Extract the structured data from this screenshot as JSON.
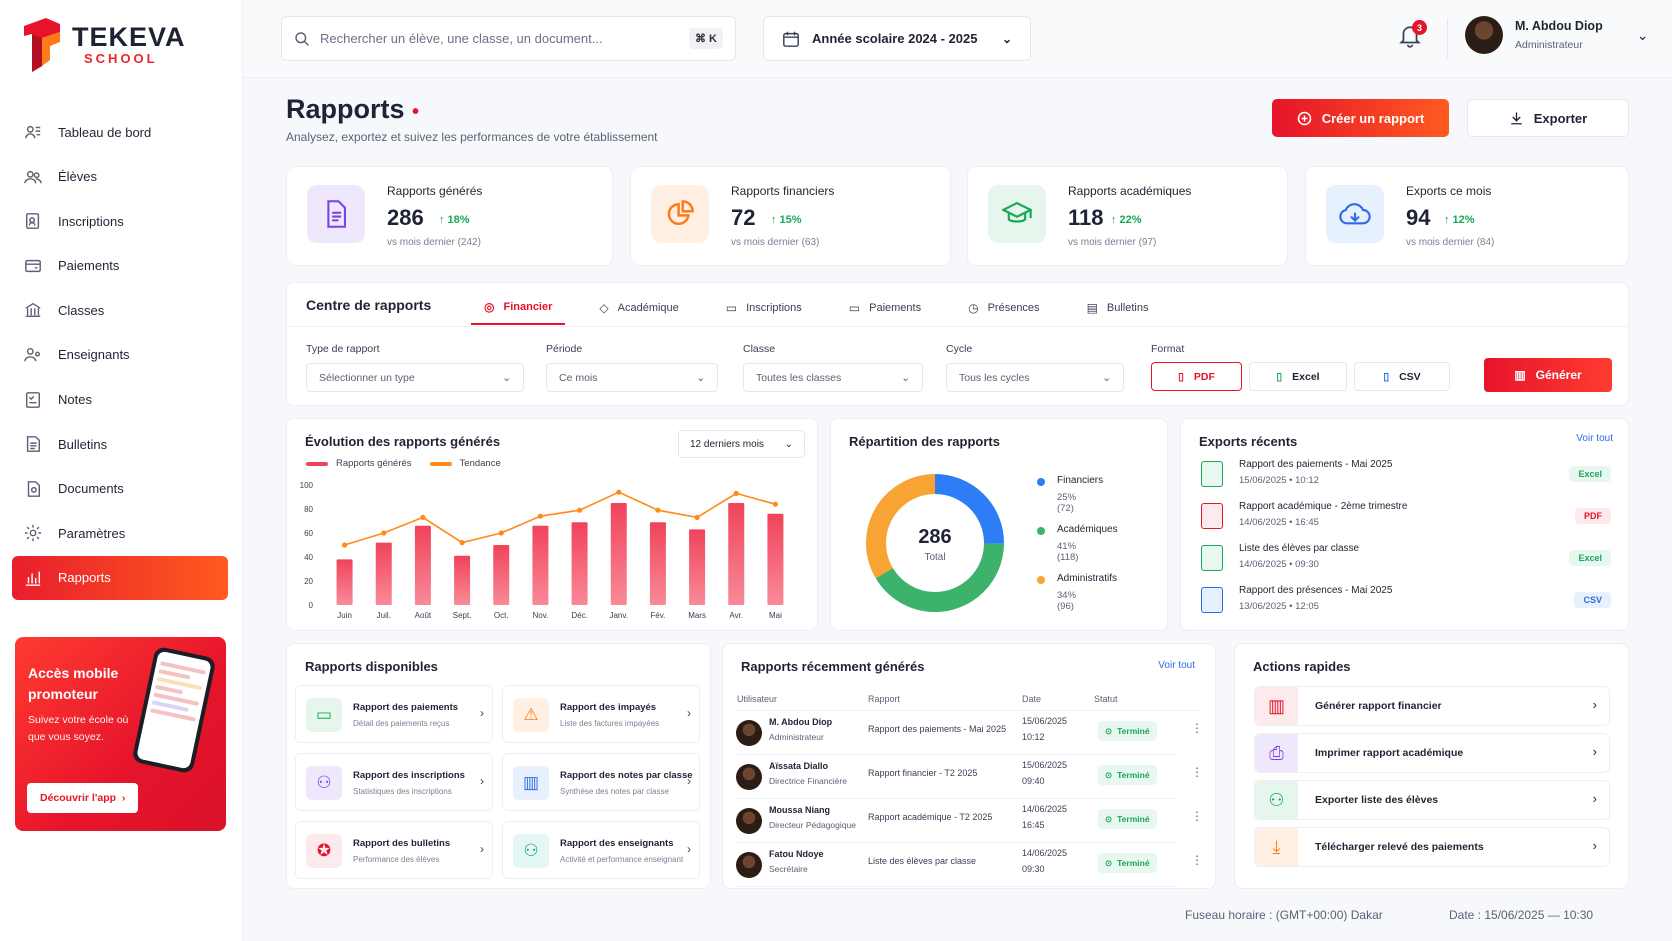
{
  "brand": {
    "name": "TEKEVA",
    "sub": "SCHOOL"
  },
  "sidebar": {
    "items": [
      {
        "label": "Tableau de bord",
        "icon": "dashboard-icon"
      },
      {
        "label": "Élèves",
        "icon": "students-icon"
      },
      {
        "label": "Inscriptions",
        "icon": "enrollment-icon"
      },
      {
        "label": "Paiements",
        "icon": "payments-icon"
      },
      {
        "label": "Classes",
        "icon": "classes-icon"
      },
      {
        "label": "Enseignants",
        "icon": "teachers-icon"
      },
      {
        "label": "Notes",
        "icon": "grades-icon"
      },
      {
        "label": "Bulletins",
        "icon": "report-cards-icon"
      },
      {
        "label": "Documents",
        "icon": "documents-icon"
      },
      {
        "label": "Paramètres",
        "icon": "settings-icon"
      },
      {
        "label": "Rapports",
        "icon": "reports-icon",
        "active": true
      }
    ],
    "promo": {
      "title": "Accès mobile promoteur",
      "text": "Suivez votre école où que vous soyez.",
      "button": "Découvrir l'app"
    }
  },
  "topbar": {
    "search_placeholder": "Rechercher un élève, une classe, un document...",
    "shortcut": "⌘ K",
    "year": "Année scolaire 2024 - 2025",
    "notifications": "3",
    "user_name": "M. Abdou Diop",
    "user_role": "Administrateur"
  },
  "page": {
    "title": "Rapports",
    "subtitle": "Analysez, exportez et suivez les performances de votre établissement",
    "create_button": "Créer un rapport",
    "export_button": "Exporter"
  },
  "stats": [
    {
      "label": "Rapports générés",
      "value": "286",
      "change": "↑ 18%",
      "sub": "vs mois dernier (242)",
      "color": "#7b3fe4"
    },
    {
      "label": "Rapports financiers",
      "value": "72",
      "change": "↑ 15%",
      "sub": "vs mois dernier (63)",
      "color": "#ff7a1a"
    },
    {
      "label": "Rapports académiques",
      "value": "118",
      "change": "↑ 22%",
      "sub": "vs mois dernier (97)",
      "color": "#18a957"
    },
    {
      "label": "Exports ce mois",
      "value": "94",
      "change": "↑ 12%",
      "sub": "vs mois dernier (84)",
      "color": "#2e6be6"
    }
  ],
  "center": {
    "title": "Centre de rapports",
    "tabs": [
      "Financier",
      "Académique",
      "Inscriptions",
      "Paiements",
      "Présences",
      "Bulletins"
    ],
    "fields": {
      "type_label": "Type de rapport",
      "type_value": "Sélectionner un type",
      "period_label": "Période",
      "period_value": "Ce mois",
      "class_label": "Classe",
      "class_value": "Toutes les classes",
      "cycle_label": "Cycle",
      "cycle_value": "Tous les cycles",
      "format_label": "Format"
    },
    "formats": [
      "PDF",
      "Excel",
      "CSV"
    ],
    "generate": "Générer"
  },
  "evolution": {
    "title": "Évolution des rapports générés",
    "range": "12 derniers mois",
    "legend_bars": "Rapports générés",
    "legend_line": "Tendance"
  },
  "chart_data": [
    {
      "type": "bar",
      "title": "Évolution des rapports générés",
      "categories": [
        "Juin",
        "Juil.",
        "Août",
        "Sept.",
        "Oct.",
        "Nov.",
        "Déc.",
        "Janv.",
        "Fév.",
        "Mars",
        "Avr.",
        "Mai"
      ],
      "series": [
        {
          "name": "Rapports générés",
          "type": "bar",
          "color": "#f0435a",
          "values": [
            38,
            52,
            66,
            41,
            50,
            66,
            69,
            85,
            69,
            63,
            85,
            76
          ]
        },
        {
          "name": "Tendance",
          "type": "line",
          "color": "#ff8a1a",
          "values": [
            50,
            60,
            73,
            52,
            60,
            74,
            79,
            94,
            79,
            73,
            93,
            84
          ]
        }
      ],
      "yticks": [
        0,
        20,
        40,
        60,
        80,
        100
      ],
      "ylim": [
        0,
        100
      ]
    },
    {
      "type": "pie",
      "title": "Répartition des rapports",
      "total": "286",
      "total_label": "Total",
      "series": [
        {
          "name": "Financiers",
          "value": 72,
          "pct": "25% (72)",
          "color": "#2e7cf6"
        },
        {
          "name": "Académiques",
          "value": 118,
          "pct": "41% (118)",
          "color": "#3cb26b"
        },
        {
          "name": "Administratifs",
          "value": 96,
          "pct": "34% (96)",
          "color": "#f7a434"
        }
      ]
    }
  ],
  "exports": {
    "title": "Exports récents",
    "see_all": "Voir tout",
    "items": [
      {
        "title": "Rapport des paiements - Mai 2025",
        "date": "15/06/2025 • 10:12",
        "format": "Excel"
      },
      {
        "title": "Rapport académique - 2ème trimestre",
        "date": "14/06/2025 • 16:45",
        "format": "PDF"
      },
      {
        "title": "Liste des élèves par classe",
        "date": "14/06/2025 • 09:30",
        "format": "Excel"
      },
      {
        "title": "Rapport des présences - Mai 2025",
        "date": "13/06/2025 • 12:05",
        "format": "CSV"
      }
    ]
  },
  "available": {
    "title": "Rapports disponibles",
    "items": [
      {
        "title": "Rapport des paiements",
        "sub": "Détail des paiements reçus"
      },
      {
        "title": "Rapport des impayés",
        "sub": "Liste des factures impayées"
      },
      {
        "title": "Rapport des inscriptions",
        "sub": "Statistiques des inscriptions"
      },
      {
        "title": "Rapport des notes par classe",
        "sub": "Synthèse des notes par classe"
      },
      {
        "title": "Rapport des bulletins",
        "sub": "Performance des élèves"
      },
      {
        "title": "Rapport des enseignants",
        "sub": "Activité et performance enseignant"
      }
    ]
  },
  "recent": {
    "title": "Rapports récemment générés",
    "see_all": "Voir tout",
    "headers": [
      "Utilisateur",
      "Rapport",
      "Date",
      "Statut"
    ],
    "rows": [
      {
        "name": "M. Abdou Diop",
        "role": "Administrateur",
        "report": "Rapport des paiements - Mai 2025",
        "date": "15/06/2025",
        "time": "10:12",
        "status": "Terminé"
      },
      {
        "name": "Aïssata Diallo",
        "role": "Directrice Financière",
        "report": "Rapport financier - T2 2025",
        "date": "15/06/2025",
        "time": "09:40",
        "status": "Terminé"
      },
      {
        "name": "Moussa Niang",
        "role": "Directeur Pédagogique",
        "report": "Rapport académique - T2 2025",
        "date": "14/06/2025",
        "time": "16:45",
        "status": "Terminé"
      },
      {
        "name": "Fatou Ndoye",
        "role": "Secrétaire",
        "report": "Liste des élèves par classe",
        "date": "14/06/2025",
        "time": "09:30",
        "status": "Terminé"
      }
    ]
  },
  "quick": {
    "title": "Actions rapides",
    "items": [
      "Générer rapport financier",
      "Imprimer rapport académique",
      "Exporter liste des élèves",
      "Télécharger relevé des paiements"
    ]
  },
  "footer": {
    "timezone": "Fuseau horaire : (GMT+00:00) Dakar",
    "date": "Date : 15/06/2025  —  10:30"
  }
}
